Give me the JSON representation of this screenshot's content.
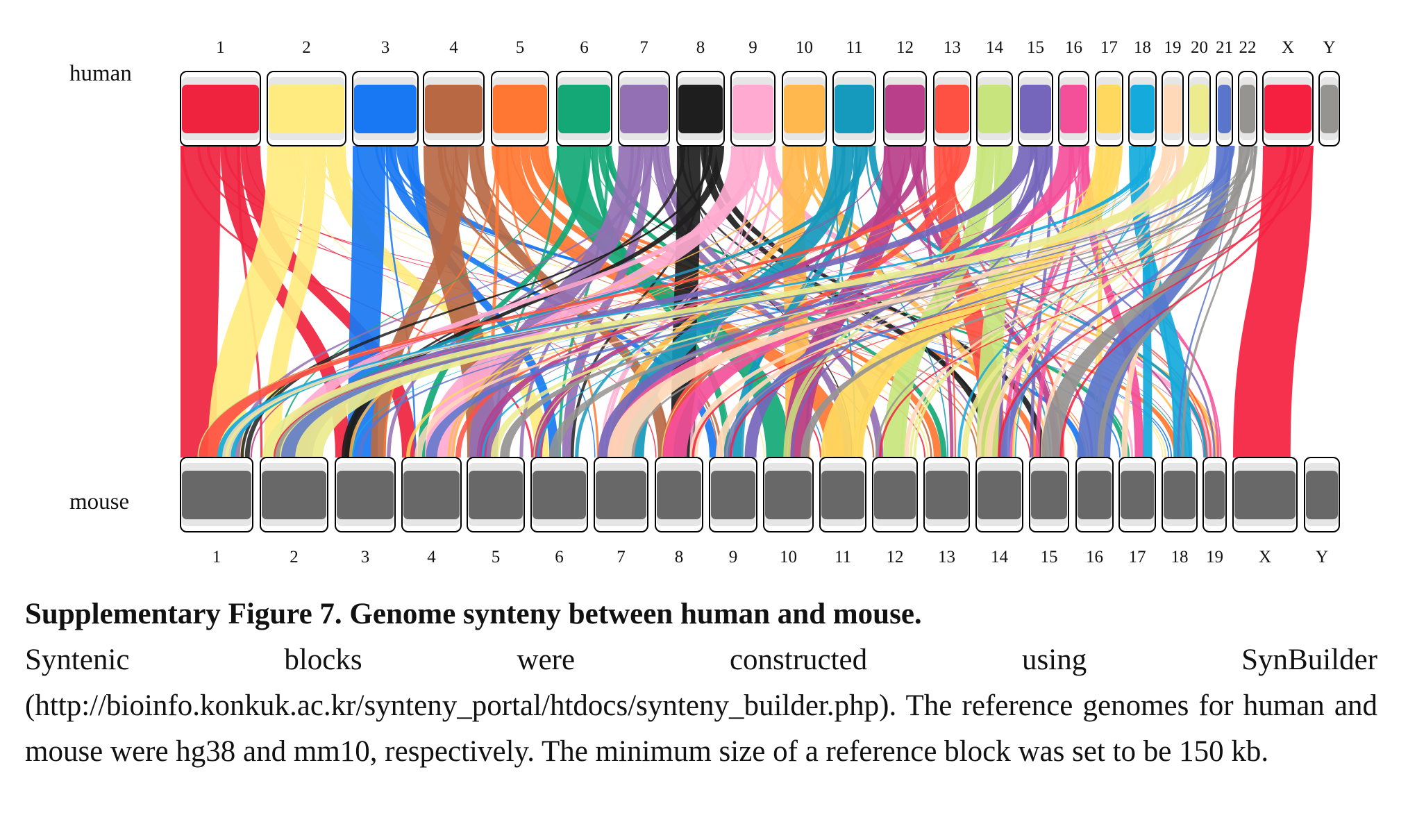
{
  "figure": {
    "top_genome_label": "human",
    "bottom_genome_label": "mouse",
    "human_chromosomes": [
      "1",
      "2",
      "3",
      "4",
      "5",
      "6",
      "7",
      "8",
      "9",
      "10",
      "11",
      "12",
      "13",
      "14",
      "15",
      "16",
      "17",
      "18",
      "19",
      "20",
      "21",
      "22",
      "X",
      "Y"
    ],
    "mouse_chromosomes": [
      "1",
      "2",
      "3",
      "4",
      "5",
      "6",
      "7",
      "8",
      "9",
      "10",
      "11",
      "12",
      "13",
      "14",
      "15",
      "16",
      "17",
      "18",
      "19",
      "X",
      "Y"
    ],
    "human_colors": [
      "#f0233f",
      "#ffeb80",
      "#1877f2",
      "#b86944",
      "#ff7733",
      "#13a876",
      "#9370b4",
      "#1e1e1e",
      "#ffaad0",
      "#ffb84d",
      "#1599bc",
      "#b93f8a",
      "#ff5143",
      "#c7e57c",
      "#7566bb",
      "#f4509a",
      "#ffd95f",
      "#14aadc",
      "#ffd9b8",
      "#ecec8f",
      "#5a76cc",
      "#969491",
      "#f5203f",
      "#969491"
    ],
    "mouse_color": "#686868"
  },
  "caption": {
    "title": "Supplementary Figure 7. Genome synteny between human and mouse.",
    "body": "Syntenic blocks were constructed using SynBuilder (http://bioinfo.konkuk.ac.kr/synteny_portal/htdocs/synteny_builder.php). The reference genomes for human and mouse were hg38 and mm10, respectively. The minimum size of a reference block was set to be 150 kb."
  }
}
